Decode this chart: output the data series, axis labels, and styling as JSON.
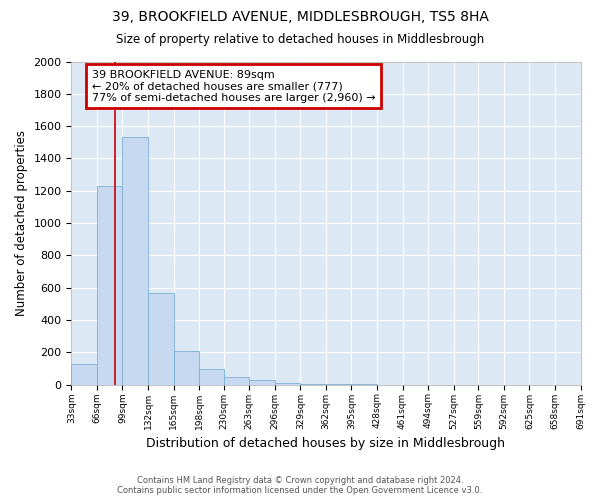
{
  "title": "39, BROOKFIELD AVENUE, MIDDLESBROUGH, TS5 8HA",
  "subtitle": "Size of property relative to detached houses in Middlesbrough",
  "xlabel": "Distribution of detached houses by size in Middlesbrough",
  "ylabel": "Number of detached properties",
  "bin_edges": [
    33,
    66,
    99,
    132,
    165,
    198,
    230,
    263,
    296,
    329,
    362,
    395,
    428,
    461,
    494,
    527,
    559,
    592,
    625,
    658,
    691
  ],
  "bar_heights": [
    130,
    1230,
    1530,
    565,
    210,
    95,
    50,
    30,
    10,
    5,
    2,
    1,
    0,
    0,
    0,
    0,
    0,
    0,
    0,
    0
  ],
  "bar_color": "#c6d9f0",
  "bar_edgecolor": "#7bafd4",
  "property_size": 89,
  "redline_color": "#cc0000",
  "annotation_text": "39 BROOKFIELD AVENUE: 89sqm\n← 20% of detached houses are smaller (777)\n77% of semi-detached houses are larger (2,960) →",
  "annotation_boxcolor": "#ffffff",
  "annotation_edgecolor": "#cc0000",
  "ylim": [
    0,
    2000
  ],
  "yticks": [
    0,
    200,
    400,
    600,
    800,
    1000,
    1200,
    1400,
    1600,
    1800,
    2000
  ],
  "background_color": "#dce9f5",
  "fig_background_color": "#ffffff",
  "grid_color": "#ffffff",
  "footer_line1": "Contains HM Land Registry data © Crown copyright and database right 2024.",
  "footer_line2": "Contains public sector information licensed under the Open Government Licence v3.0."
}
